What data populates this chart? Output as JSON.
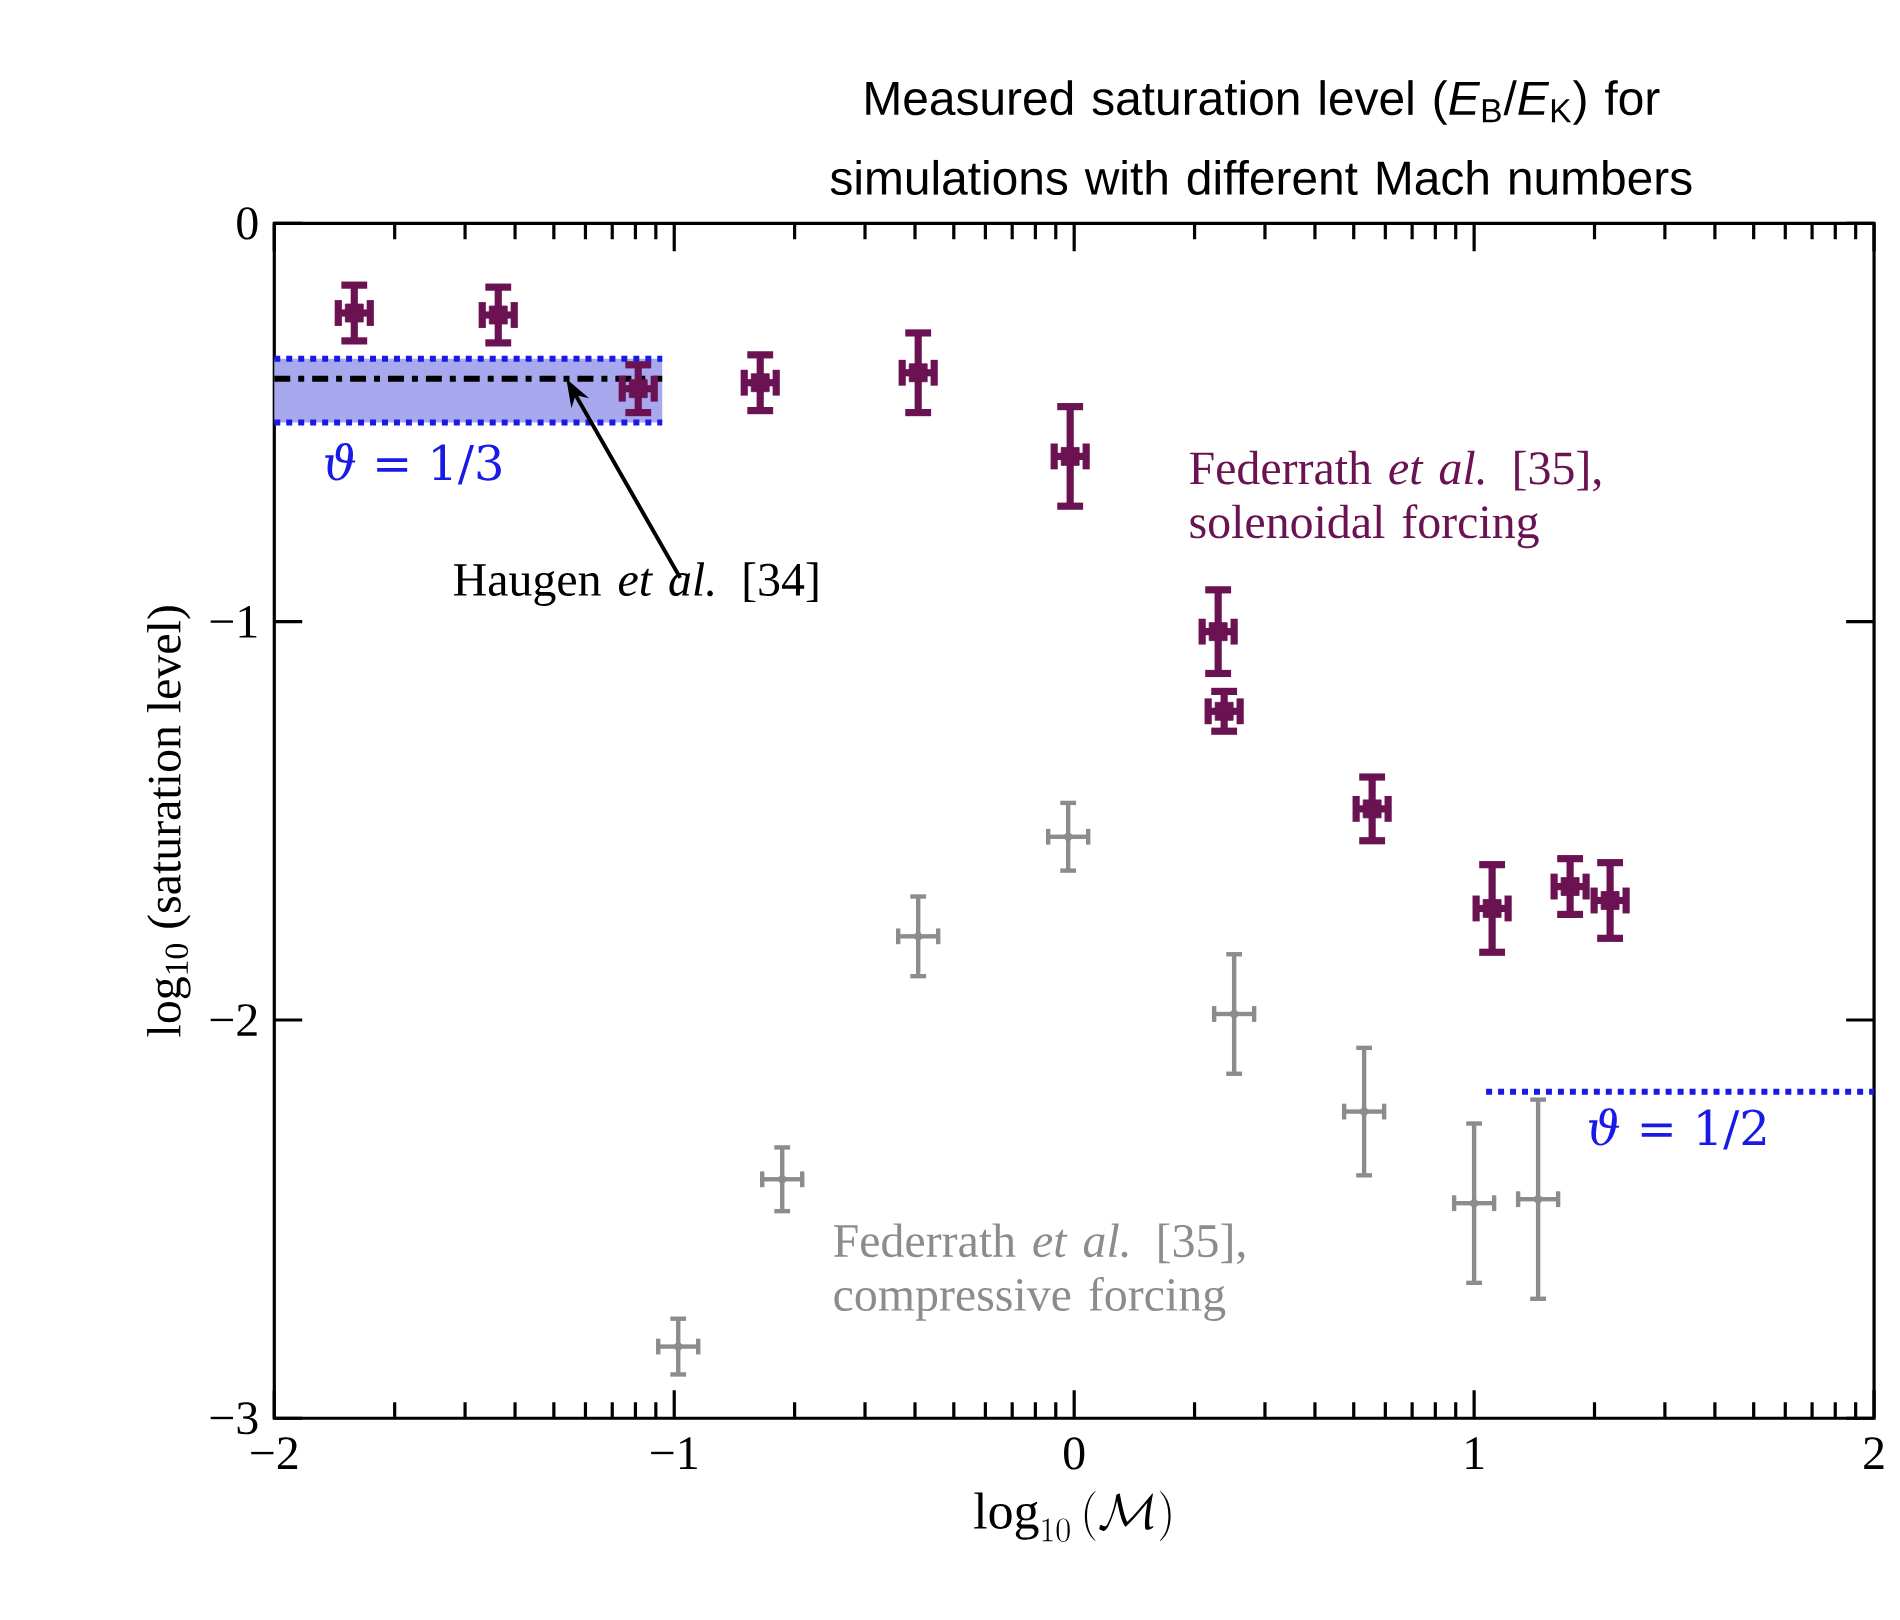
{
  "chart_data": {
    "type": "scatter",
    "title": "Measured saturation level (*E*$_{B}$/*E*$_{K}$) for simulations with different Mach numbers",
    "xlabel": "\\log_{10}\\,(\\mathcal{M})",
    "ylabel": "log$_{10}$ (saturation level)",
    "xlim": [
      -2,
      2
    ],
    "ylim": [
      -3,
      0
    ],
    "xticks": [
      {
        "value": -2,
        "label": "−2"
      },
      {
        "value": -1.699,
        "label": null
      },
      {
        "value": -1.523,
        "label": null
      },
      {
        "value": -1.398,
        "label": null
      },
      {
        "value": -1.301,
        "label": null
      },
      {
        "value": -1.222,
        "label": null
      },
      {
        "value": -1.155,
        "label": null
      },
      {
        "value": -1.097,
        "label": null
      },
      {
        "value": -1.046,
        "label": null
      },
      {
        "value": -1,
        "label": "−1"
      },
      {
        "value": -0.699,
        "label": null
      },
      {
        "value": -0.523,
        "label": null
      },
      {
        "value": -0.398,
        "label": null
      },
      {
        "value": -0.301,
        "label": null
      },
      {
        "value": -0.222,
        "label": null
      },
      {
        "value": -0.155,
        "label": null
      },
      {
        "value": -0.097,
        "label": null
      },
      {
        "value": -0.046,
        "label": null
      },
      0,
      {
        "value": 0.301,
        "label": null
      },
      {
        "value": 0.477,
        "label": null
      },
      {
        "value": 0.602,
        "label": null
      },
      {
        "value": 0.699,
        "label": null
      },
      {
        "value": 0.778,
        "label": null
      },
      {
        "value": 0.845,
        "label": null
      },
      {
        "value": 0.903,
        "label": null
      },
      {
        "value": 0.954,
        "label": null
      },
      1,
      {
        "value": 1.301,
        "label": null
      },
      {
        "value": 1.477,
        "label": null
      },
      {
        "value": 1.602,
        "label": null
      },
      {
        "value": 1.699,
        "label": null
      },
      {
        "value": 1.778,
        "label": null
      },
      {
        "value": 1.845,
        "label": null
      },
      {
        "value": 1.903,
        "label": null
      },
      {
        "value": 1.954,
        "label": null
      },
      2
    ],
    "yticks": [
      {
        "value": -3,
        "label": "−3"
      },
      {
        "value": -2,
        "label": "−2"
      },
      {
        "value": -1,
        "label": "−1"
      },
      0
    ],
    "grid": false,
    "bands": [
      {
        "axis": "y",
        "from": -0.5,
        "to": -0.34,
        "label": "*ϑ* = 1/3",
        "color": "#a8a8ee"
      }
    ],
    "series": [
      {
        "name": "Federrath *et al.* [35], solenoidal forcing",
        "color": "#6b1252",
        "marker": "square",
        "x": [
          -1.8,
          -1.44,
          -1.09,
          -0.785,
          -0.39,
          -0.01,
          0.36,
          0.375,
          0.745,
          1.045,
          1.24,
          1.34
        ],
        "values": [
          -0.225,
          -0.23,
          -0.415,
          -0.4,
          -0.375,
          -0.585,
          -1.025,
          -1.225,
          -1.47,
          -1.72,
          -1.665,
          -1.7
        ],
        "errors": [
          0.07,
          0.07,
          0.06,
          0.07,
          0.1,
          0.125,
          0.105,
          0.05,
          0.08,
          0.11,
          0.07,
          0.095
        ],
        "xerrors": [
          0.04,
          0.04,
          0.04,
          0.04,
          0.04,
          0.04,
          0.04,
          0.04,
          0.04,
          0.04,
          0.04,
          0.04
        ]
      },
      {
        "name": "Federrath *et al.* [35], compressive forcing",
        "color": "#8c8c8c",
        "x": [
          -0.99,
          -0.73,
          -0.39,
          -0.015,
          0.4,
          0.725,
          1.0,
          1.16
        ],
        "values": [
          -2.82,
          -2.4,
          -1.79,
          -1.54,
          -1.985,
          -2.23,
          -2.46,
          -2.45
        ],
        "errors": [
          0.07,
          0.08,
          0.1,
          0.085,
          0.15,
          0.16,
          0.2,
          0.25
        ],
        "xerrors": [
          0.05,
          0.05,
          0.05,
          0.05,
          0.05,
          0.05,
          0.05,
          0.05
        ]
      },
      {
        "name": "Haugen *et al.* [34]",
        "type": "line",
        "color": "#000000",
        "line_style": "dashdot",
        "x": [
          -2,
          -1.03
        ],
        "values": [
          -0.39,
          -0.39
        ]
      },
      {
        "name": "*ϑ* = 1/2",
        "type": "line",
        "color": "#1a1ae6",
        "line_style": "dotted",
        "x": [
          1.03,
          2
        ],
        "values": [
          -2.18,
          -2.18
        ]
      },
      {
        "type": "line",
        "color": "#1a1ae6",
        "line_style": "dotted",
        "x": [
          -2,
          -1.03
        ],
        "values": [
          -0.34,
          -0.34
        ]
      },
      {
        "type": "line",
        "color": "#1a1ae6",
        "line_style": "dotted",
        "x": [
          -2,
          -1.03
        ],
        "values": [
          -0.5,
          -0.5
        ]
      }
    ]
  }
}
